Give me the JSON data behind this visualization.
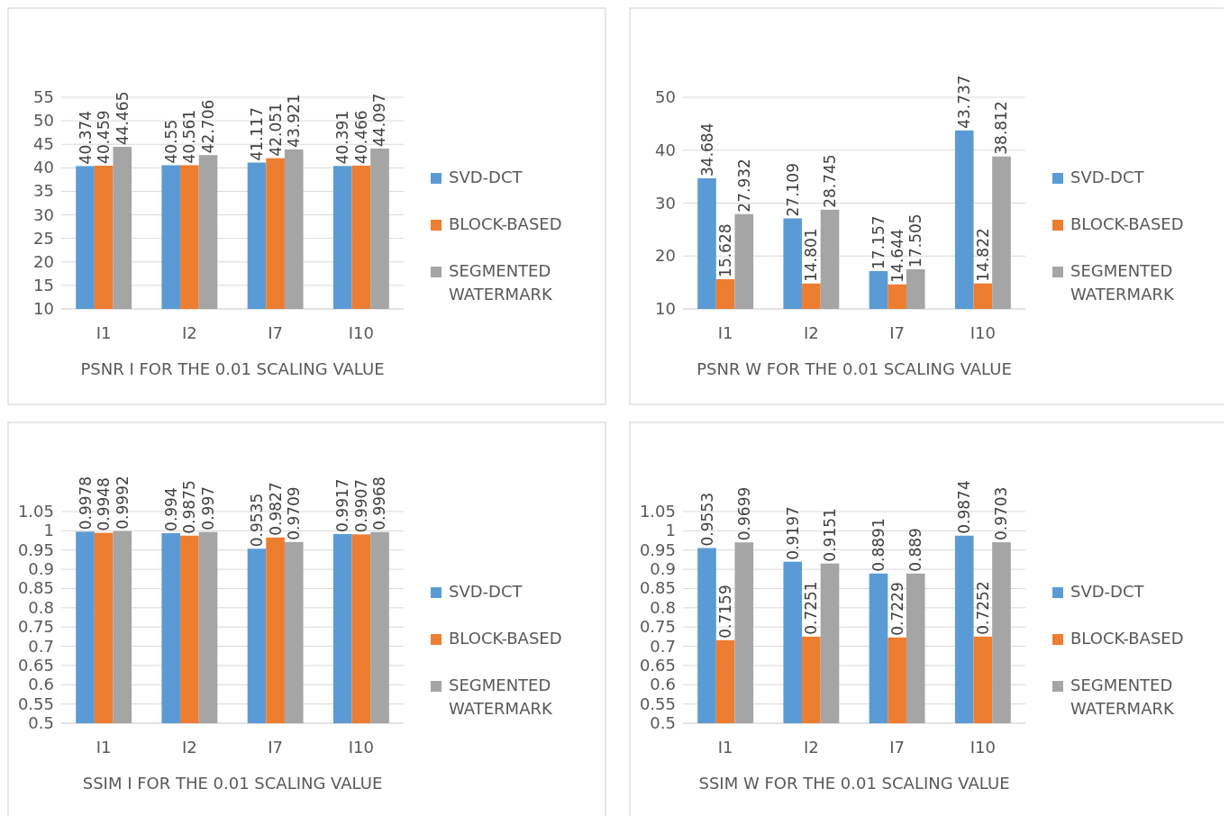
{
  "chart_data": [
    {
      "type": "bar",
      "xlabel": "PSNR I FOR THE 0.01 SCALING VALUE",
      "categories": [
        "I1",
        "I2",
        "I7",
        "I10"
      ],
      "ylim": [
        10,
        55
      ],
      "yticks": [
        10,
        15,
        20,
        25,
        30,
        35,
        40,
        45,
        50,
        55
      ],
      "grid": "y",
      "legend": "right",
      "data_labels": true,
      "series": [
        {
          "name": "SVD-DCT",
          "color": "#5b9bd5",
          "values": [
            40.374,
            40.55,
            41.117,
            40.391
          ]
        },
        {
          "name": "BLOCK-BASED",
          "color": "#ed7d31",
          "values": [
            40.459,
            40.561,
            42.051,
            40.466
          ]
        },
        {
          "name": "SEGMENTED WATERMARK",
          "color": "#a5a5a5",
          "values": [
            44.465,
            42.706,
            43.921,
            44.097
          ]
        }
      ]
    },
    {
      "type": "bar",
      "xlabel": "PSNR W FOR THE 0.01 SCALING VALUE",
      "categories": [
        "I1",
        "I2",
        "I7",
        "I10"
      ],
      "ylim": [
        10,
        50
      ],
      "yticks": [
        10,
        20,
        30,
        40,
        50
      ],
      "grid": "y",
      "legend": "right",
      "data_labels": true,
      "series": [
        {
          "name": "SVD-DCT",
          "color": "#5b9bd5",
          "values": [
            34.684,
            27.109,
            17.157,
            43.737
          ]
        },
        {
          "name": "BLOCK-BASED",
          "color": "#ed7d31",
          "values": [
            15.628,
            14.801,
            14.644,
            14.822
          ]
        },
        {
          "name": "SEGMENTED WATERMARK",
          "color": "#a5a5a5",
          "values": [
            27.932,
            28.745,
            17.505,
            38.812
          ]
        }
      ]
    },
    {
      "type": "bar",
      "xlabel": "SSIM I FOR THE 0.01 SCALING VALUE",
      "categories": [
        "I1",
        "I2",
        "I7",
        "I10"
      ],
      "ylim": [
        0.5,
        1.05
      ],
      "yticks": [
        0.5,
        0.55,
        0.6,
        0.65,
        0.7,
        0.75,
        0.8,
        0.85,
        0.9,
        0.95,
        1,
        1.05
      ],
      "grid": "y",
      "legend": "right",
      "data_labels": true,
      "series": [
        {
          "name": "SVD-DCT",
          "color": "#5b9bd5",
          "values": [
            0.9978,
            0.994,
            0.9535,
            0.9917
          ]
        },
        {
          "name": "BLOCK-BASED",
          "color": "#ed7d31",
          "values": [
            0.9948,
            0.9875,
            0.9827,
            0.9907
          ]
        },
        {
          "name": "SEGMENTED WATERMARK",
          "color": "#a5a5a5",
          "values": [
            0.9992,
            0.997,
            0.9709,
            0.9968
          ]
        }
      ]
    },
    {
      "type": "bar",
      "xlabel": "SSIM W FOR THE 0.01 SCALING VALUE",
      "categories": [
        "I1",
        "I2",
        "I7",
        "I10"
      ],
      "ylim": [
        0.5,
        1.05
      ],
      "yticks": [
        0.5,
        0.55,
        0.6,
        0.65,
        0.7,
        0.75,
        0.8,
        0.85,
        0.9,
        0.95,
        1,
        1.05
      ],
      "grid": "y",
      "legend": "right",
      "data_labels": true,
      "series": [
        {
          "name": "SVD-DCT",
          "color": "#5b9bd5",
          "values": [
            0.9553,
            0.9197,
            0.8891,
            0.9874
          ]
        },
        {
          "name": "BLOCK-BASED",
          "color": "#ed7d31",
          "values": [
            0.7159,
            0.7251,
            0.7229,
            0.7252
          ]
        },
        {
          "name": "SEGMENTED WATERMARK",
          "color": "#a5a5a5",
          "values": [
            0.9699,
            0.9151,
            0.889,
            0.9703
          ]
        }
      ]
    }
  ]
}
